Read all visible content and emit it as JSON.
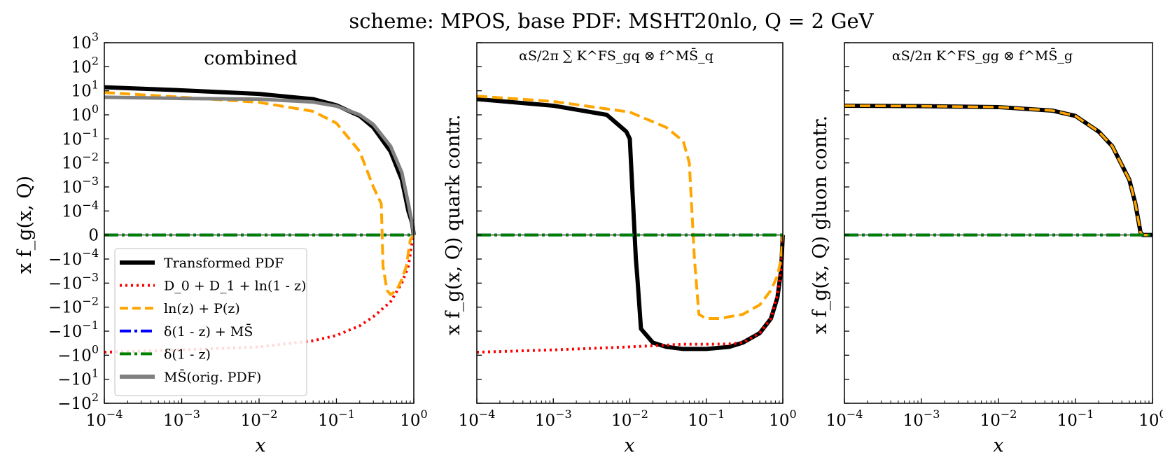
{
  "chart_data": {
    "type": "line",
    "title": "scheme: MPOS, base PDF: MSHT20nlo, Q = 2 GeV",
    "x_scale": "log",
    "y_scale": "symlog",
    "xlim": [
      0.0001,
      1
    ],
    "ylim": [
      -100,
      1000
    ],
    "x_tick_labels": [
      "10^-4",
      "10^-3",
      "10^-2",
      "10^-1",
      "10^0"
    ],
    "y_tick_labels": [
      "10^3",
      "10^2",
      "10^1",
      "10^0",
      "10^-1",
      "10^-2",
      "10^-3",
      "10^-4",
      "0",
      "-10^-4",
      "-10^-3",
      "-10^-2",
      "-10^-1",
      "-10^0",
      "-10^1",
      "-10^2"
    ],
    "legend": {
      "location": "lower-left",
      "entries": [
        "Transformed PDF",
        "D_0 + D_1 + ln(1 - z)",
        "ln(z) + P(z)",
        "δ(1 - z) + MS̄",
        "δ(1 - z)",
        "MS̄(orig. PDF)"
      ]
    },
    "panels": [
      {
        "name": "combined",
        "annotation": "combined",
        "xlabel": "x",
        "ylabel": "x f_g(x, Q)",
        "series": [
          {
            "name": "Transformed PDF",
            "color": "#000000",
            "style": "solid",
            "x": [
              0.0001,
              0.001,
              0.01,
              0.05,
              0.1,
              0.2,
              0.3,
              0.5,
              0.7,
              0.85,
              0.95,
              1.0
            ],
            "y": [
              14,
              10.5,
              7.4,
              4.5,
              2.5,
              0.9,
              0.3,
              0.03,
              0.002,
              0.0001,
              5e-05,
              0
            ]
          },
          {
            "name": "D_0 + D_1 + ln(1 - z)",
            "color": "#ff0000",
            "style": "dotted",
            "x": [
              0.0001,
              0.001,
              0.01,
              0.05,
              0.1,
              0.2,
              0.3,
              0.5,
              0.7,
              0.85,
              0.95,
              1.0
            ],
            "y": [
              -0.75,
              -0.6,
              -0.45,
              -0.25,
              -0.15,
              -0.06,
              -0.025,
              -0.006,
              -0.001,
              -0.0002,
              -3e-05,
              0
            ]
          },
          {
            "name": "ln(z) + P(z)",
            "color": "#ffa500",
            "style": "dashed",
            "x": [
              0.0001,
              0.001,
              0.01,
              0.05,
              0.1,
              0.2,
              0.3,
              0.38,
              0.4,
              0.45,
              0.5,
              0.6,
              0.7,
              0.8,
              0.9,
              1.0
            ],
            "y": [
              8.5,
              5.4,
              3.3,
              1.4,
              0.45,
              0.03,
              0.001,
              0.0002,
              -0.0002,
              -0.002,
              -0.003,
              -0.002,
              -0.0007,
              -0.0002,
              -2e-05,
              0
            ]
          },
          {
            "name": "δ(1 - z) + MS̄",
            "color": "#0000ff",
            "style": "dashdot",
            "x": [
              0.0001,
              1.0
            ],
            "y": [
              0,
              0
            ]
          },
          {
            "name": "δ(1 - z)",
            "color": "#008000",
            "style": "dashdot",
            "x": [
              0.0001,
              1.0
            ],
            "y": [
              0,
              0
            ]
          },
          {
            "name": "MS̄(orig. PDF)",
            "color": "#808080",
            "style": "solid",
            "x": [
              0.0001,
              0.001,
              0.01,
              0.05,
              0.1,
              0.2,
              0.3,
              0.5,
              0.7,
              0.85,
              0.95,
              1.0
            ],
            "y": [
              5.4,
              4.8,
              4.5,
              3.4,
              2.3,
              1.0,
              0.4,
              0.05,
              0.004,
              0.0002,
              5e-05,
              0
            ]
          }
        ]
      },
      {
        "name": "quark",
        "annotation": "αS/2π ∑ K^FS_gq ⊗ f^MS̄_q",
        "xlabel": "x",
        "ylabel": "x f_g(x, Q) quark contr.",
        "series": [
          {
            "name": "Transformed PDF",
            "color": "#000000",
            "style": "solid",
            "x": [
              0.0001,
              0.001,
              0.005,
              0.009,
              0.01,
              0.012,
              0.0125,
              0.014,
              0.02,
              0.03,
              0.05,
              0.1,
              0.2,
              0.3,
              0.5,
              0.7,
              0.85,
              0.95,
              1.0
            ],
            "y": [
              4.5,
              2.4,
              1.0,
              0.2,
              0.1,
              -0.0001,
              -0.0005,
              -0.08,
              -0.3,
              -0.45,
              -0.55,
              -0.55,
              -0.45,
              -0.3,
              -0.12,
              -0.03,
              -0.004,
              -0.0003,
              0
            ]
          },
          {
            "name": "D_0 + D_1 + ln(1 - z)",
            "color": "#ff0000",
            "style": "dotted",
            "x": [
              0.0001,
              0.001,
              0.01,
              0.05,
              0.1,
              0.2,
              0.3,
              0.5,
              0.7,
              0.85,
              0.95,
              1.0
            ],
            "y": [
              -0.75,
              -0.6,
              -0.45,
              -0.35,
              -0.35,
              -0.34,
              -0.3,
              -0.12,
              -0.03,
              -0.003,
              -0.0003,
              0
            ]
          },
          {
            "name": "ln(z) + P(z)",
            "color": "#ffa500",
            "style": "dashed",
            "x": [
              0.0001,
              0.001,
              0.01,
              0.03,
              0.05,
              0.06,
              0.07,
              0.08,
              0.1,
              0.15,
              0.2,
              0.3,
              0.5,
              0.7,
              0.85,
              0.95,
              1.0
            ],
            "y": [
              6.0,
              3.6,
              1.3,
              0.3,
              0.08,
              0.01,
              -0.0001,
              -0.02,
              -0.03,
              -0.03,
              -0.025,
              -0.02,
              -0.008,
              -0.002,
              -0.0005,
              -0.0001,
              0
            ]
          },
          {
            "name": "δ(1 - z) + MS̄",
            "color": "#0000ff",
            "style": "dashdot",
            "x": [
              0.0001,
              1.0
            ],
            "y": [
              0,
              0
            ]
          },
          {
            "name": "δ(1 - z)",
            "color": "#008000",
            "style": "dashdot",
            "x": [
              0.0001,
              1.0
            ],
            "y": [
              0,
              0
            ]
          }
        ]
      },
      {
        "name": "gluon",
        "annotation": "αS/2π K^FS_gg ⊗ f^MS̄_g",
        "xlabel": "x",
        "ylabel": "x f_g(x, Q) gluon contr.",
        "series": [
          {
            "name": "Transformed PDF",
            "color": "#000000",
            "style": "solid",
            "x": [
              0.0001,
              0.001,
              0.01,
              0.05,
              0.1,
              0.2,
              0.3,
              0.5,
              0.6,
              0.7,
              0.75,
              0.8,
              1.0
            ],
            "y": [
              2.4,
              2.3,
              2.1,
              1.5,
              0.9,
              0.2,
              0.05,
              0.002,
              0.0002,
              1e-05,
              0,
              0,
              0
            ]
          },
          {
            "name": "ln(z) + P(z)",
            "color": "#ffa500",
            "style": "dashed",
            "x": [
              0.0001,
              0.001,
              0.01,
              0.05,
              0.1,
              0.2,
              0.3,
              0.5,
              0.6,
              0.7,
              0.75,
              0.8,
              1.0
            ],
            "y": [
              2.4,
              2.3,
              2.1,
              1.5,
              0.9,
              0.2,
              0.05,
              0.002,
              0.0002,
              1e-05,
              0,
              0,
              0
            ]
          },
          {
            "name": "δ(1 - z) + MS̄",
            "color": "#0000ff",
            "style": "dashdot",
            "x": [
              0.0001,
              1.0
            ],
            "y": [
              0,
              0
            ]
          },
          {
            "name": "δ(1 - z)",
            "color": "#008000",
            "style": "dashdot",
            "x": [
              0.0001,
              1.0
            ],
            "y": [
              0,
              0
            ]
          }
        ]
      }
    ]
  }
}
